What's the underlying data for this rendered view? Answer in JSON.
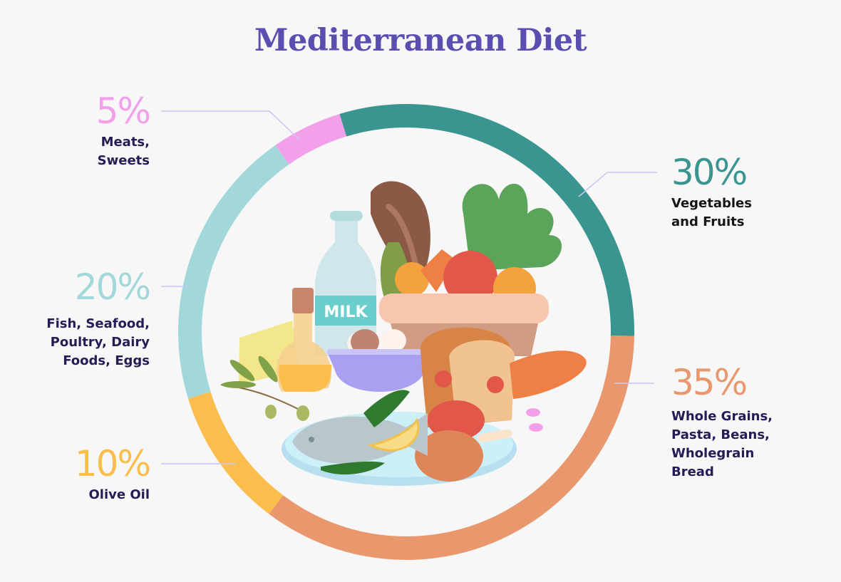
{
  "title": "Mediterranean Diet",
  "segments": [
    {
      "label_lines": [
        "Vegetables",
        "and Fruits"
      ],
      "percent": "30%",
      "value": 30,
      "color": "#3a9590"
    },
    {
      "label_lines": [
        "Whole Grains,",
        "Pasta, Beans,",
        "Wholegrain",
        "Bread"
      ],
      "percent": "35%",
      "value": 35,
      "color": "#e9976c"
    },
    {
      "label_lines": [
        "Olive Oil"
      ],
      "percent": "10%",
      "value": 10,
      "color": "#fbbd4c"
    },
    {
      "label_lines": [
        "Fish, Seafood,",
        "Poultry,  Dairy",
        "Foods, Eggs"
      ],
      "percent": "20%",
      "value": 20,
      "color": "#a2d8d9"
    },
    {
      "label_lines": [
        "Meats,",
        "Sweets"
      ],
      "percent": "5%",
      "value": 5,
      "color": "#f2a0ea"
    }
  ],
  "illustration": {
    "milk_label": "MILK"
  },
  "chart_data": {
    "type": "pie",
    "title": "Mediterranean Diet",
    "categories": [
      "Vegetables and Fruits",
      "Whole Grains, Pasta, Beans, Wholegrain Bread",
      "Olive Oil",
      "Fish, Seafood, Poultry, Dairy Foods, Eggs",
      "Meats, Sweets"
    ],
    "values": [
      30,
      35,
      10,
      20,
      5
    ],
    "colors": [
      "#3a9590",
      "#e9976c",
      "#fbbd4c",
      "#a2d8d9",
      "#f2a0ea"
    ],
    "style": "donut-ring",
    "legend_position": "around"
  }
}
